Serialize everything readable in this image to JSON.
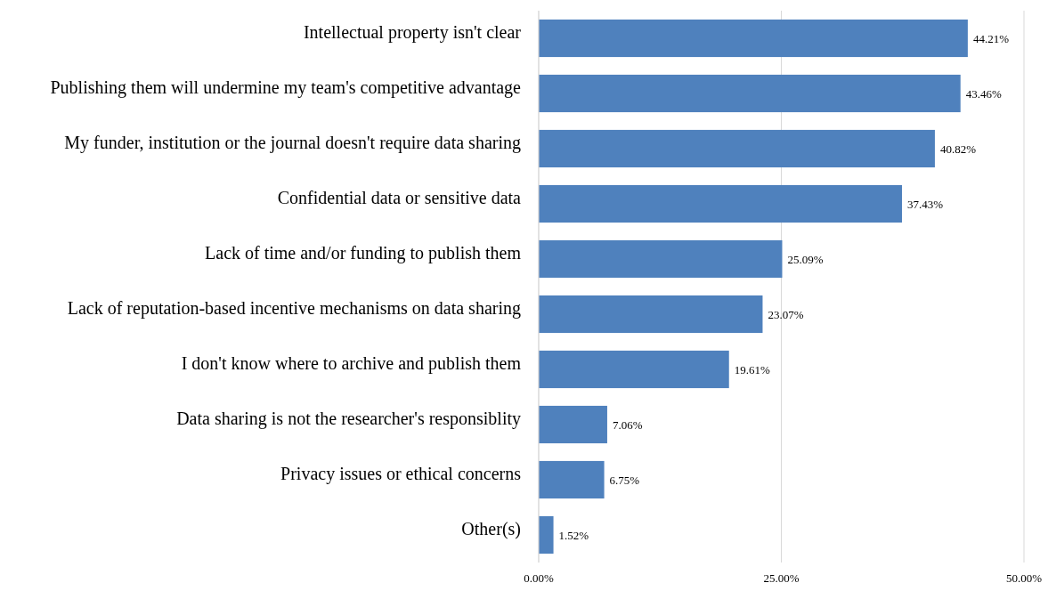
{
  "chart_data": {
    "type": "bar",
    "orientation": "horizontal",
    "categories": [
      "Intellectual property isn't clear",
      "Publishing them will undermine my team's competitive advantage",
      "My funder, institution or the journal doesn't require data sharing",
      "Confidential data or sensitive data",
      "Lack of time and/or funding to publish them",
      "Lack of reputation-based incentive mechanisms on data sharing",
      "I don't know where to archive and publish them",
      "Data sharing is not the researcher's responsiblity",
      "Privacy issues or ethical concerns",
      "Other(s)"
    ],
    "values": [
      44.21,
      43.46,
      40.82,
      37.43,
      25.09,
      23.07,
      19.61,
      7.06,
      6.75,
      1.52
    ],
    "value_labels": [
      "44.21%",
      "43.46%",
      "40.82%",
      "37.43%",
      "25.09%",
      "23.07%",
      "19.61%",
      "7.06%",
      "6.75%",
      "1.52%"
    ],
    "color": "#4f81bd",
    "xlim": [
      0,
      50
    ],
    "xticks": [
      {
        "value": 0,
        "label": "0.00%"
      },
      {
        "value": 25,
        "label": "25.00%"
      },
      {
        "value": 50,
        "label": "50.00%"
      }
    ],
    "grid": "x"
  }
}
